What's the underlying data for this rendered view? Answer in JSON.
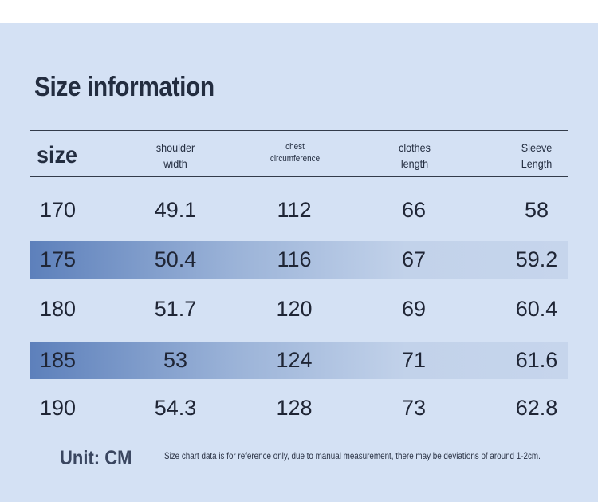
{
  "title": "Size information",
  "table": {
    "headers": {
      "size": "size",
      "shoulder": [
        "shoulder",
        "width"
      ],
      "chest": [
        "chest",
        "circumference"
      ],
      "clothes": [
        "clothes",
        "length"
      ],
      "sleeve": [
        "Sleeve",
        "Length"
      ]
    },
    "rows": [
      [
        "170",
        "49.1",
        "112",
        "66",
        "58"
      ],
      [
        "175",
        "50.4",
        "116",
        "67",
        "59.2"
      ],
      [
        "180",
        "51.7",
        "120",
        "69",
        "60.4"
      ],
      [
        "185",
        "53",
        "124",
        "71",
        "61.6"
      ],
      [
        "190",
        "54.3",
        "128",
        "73",
        "62.8"
      ]
    ],
    "shaded_rows": [
      1,
      3
    ]
  },
  "footer": {
    "unit": "Unit: CM",
    "note": "Size chart data is for reference only, due to manual measurement, there may be deviations of around 1-2cm."
  },
  "colors": {
    "background": "#d4e1f4",
    "row_highlight_start": "#5d80bb",
    "row_highlight_end": "#c6d5ec",
    "text": "#1f2535"
  }
}
